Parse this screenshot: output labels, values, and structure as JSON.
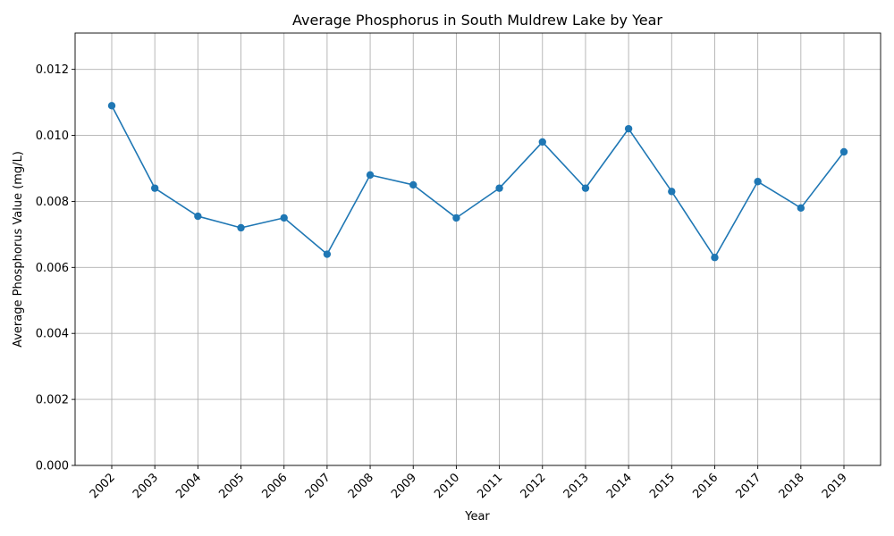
{
  "chart_data": {
    "type": "line",
    "title": "Average Phosphorus in South Muldrew Lake by Year",
    "xlabel": "Year",
    "ylabel": "Average Phosphorus Value (mg/L)",
    "categories": [
      "2002",
      "2003",
      "2004",
      "2005",
      "2006",
      "2007",
      "2008",
      "2009",
      "2010",
      "2011",
      "2012",
      "2013",
      "2014",
      "2015",
      "2016",
      "2017",
      "2018",
      "2019"
    ],
    "series": [
      {
        "values": [
          0.0109,
          0.0084,
          0.00755,
          0.0072,
          0.0075,
          0.0064,
          0.0088,
          0.0085,
          0.0075,
          0.0084,
          0.0098,
          0.0084,
          0.0102,
          0.0083,
          0.0063,
          0.0086,
          0.0078,
          0.0095
        ],
        "color": "#1f77b4",
        "marker": "circle"
      }
    ],
    "ylim": [
      0,
      0.0131
    ],
    "yticks": [
      "0.000",
      "0.002",
      "0.004",
      "0.006",
      "0.008",
      "0.010",
      "0.012"
    ],
    "grid": true,
    "legend": "none"
  }
}
